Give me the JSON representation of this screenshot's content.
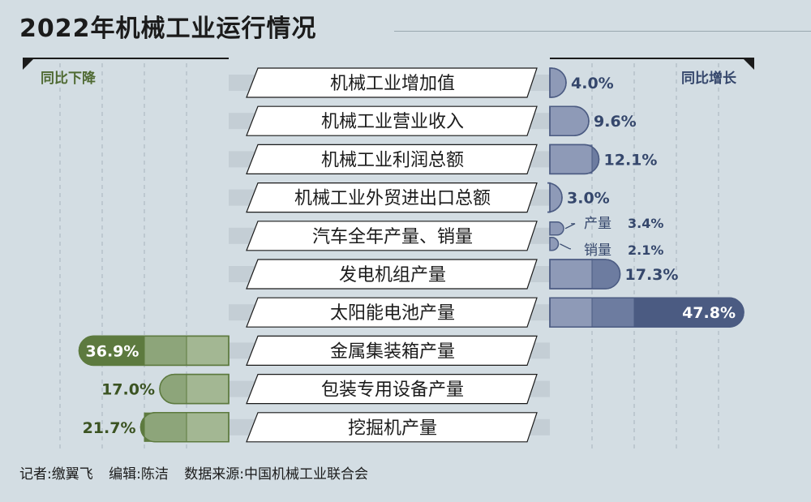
{
  "title": "2022年机械工业运行情况",
  "label_decrease": "同比下降",
  "label_increase": "同比增长",
  "credits": {
    "reporter": "记者:缴翼飞",
    "editor": "编辑:陈洁",
    "source": "数据来源:中国机械工业联合会"
  },
  "colors": {
    "increase_light": "#8e9ab7",
    "increase_mid": "#6d7ca0",
    "increase_dark": "#4b5b82",
    "increase_text": "#35476c",
    "decrease_light": "#a3b793",
    "decrease_mid": "#8da57a",
    "decrease_dark": "#5d7a3f",
    "decrease_text": "#3b5322",
    "background": "#d3dde3",
    "label_box": "#ffffff"
  },
  "chart_data": {
    "type": "bar",
    "orientation": "horizontal-diverging",
    "title": "2022年机械工业运行情况",
    "scale_max": 50,
    "grid": true,
    "rows": [
      {
        "category": "机械工业增加值",
        "direction": "increase",
        "value": 4.0,
        "label": "4.0%"
      },
      {
        "category": "机械工业营业收入",
        "direction": "increase",
        "value": 9.6,
        "label": "9.6%"
      },
      {
        "category": "机械工业利润总额",
        "direction": "increase",
        "value": 12.1,
        "label": "12.1%"
      },
      {
        "category": "机械工业外贸进出口总额",
        "direction": "increase",
        "value": 3.0,
        "label": "3.0%"
      },
      {
        "category": "汽车全年产量、销量",
        "direction": "increase",
        "split": [
          {
            "name": "产量",
            "value": 3.4,
            "label": "3.4%"
          },
          {
            "name": "销量",
            "value": 2.1,
            "label": "2.1%"
          }
        ]
      },
      {
        "category": "发电机组产量",
        "direction": "increase",
        "value": 17.3,
        "label": "17.3%"
      },
      {
        "category": "太阳能电池产量",
        "direction": "increase",
        "value": 47.8,
        "label": "47.8%"
      },
      {
        "category": "金属集装箱产量",
        "direction": "decrease",
        "value": 36.9,
        "label": "36.9%"
      },
      {
        "category": "包装专用设备产量",
        "direction": "decrease",
        "value": 17.0,
        "label": "17.0%"
      },
      {
        "category": "挖掘机产量",
        "direction": "decrease",
        "value": 21.7,
        "label": "21.7%"
      }
    ]
  }
}
